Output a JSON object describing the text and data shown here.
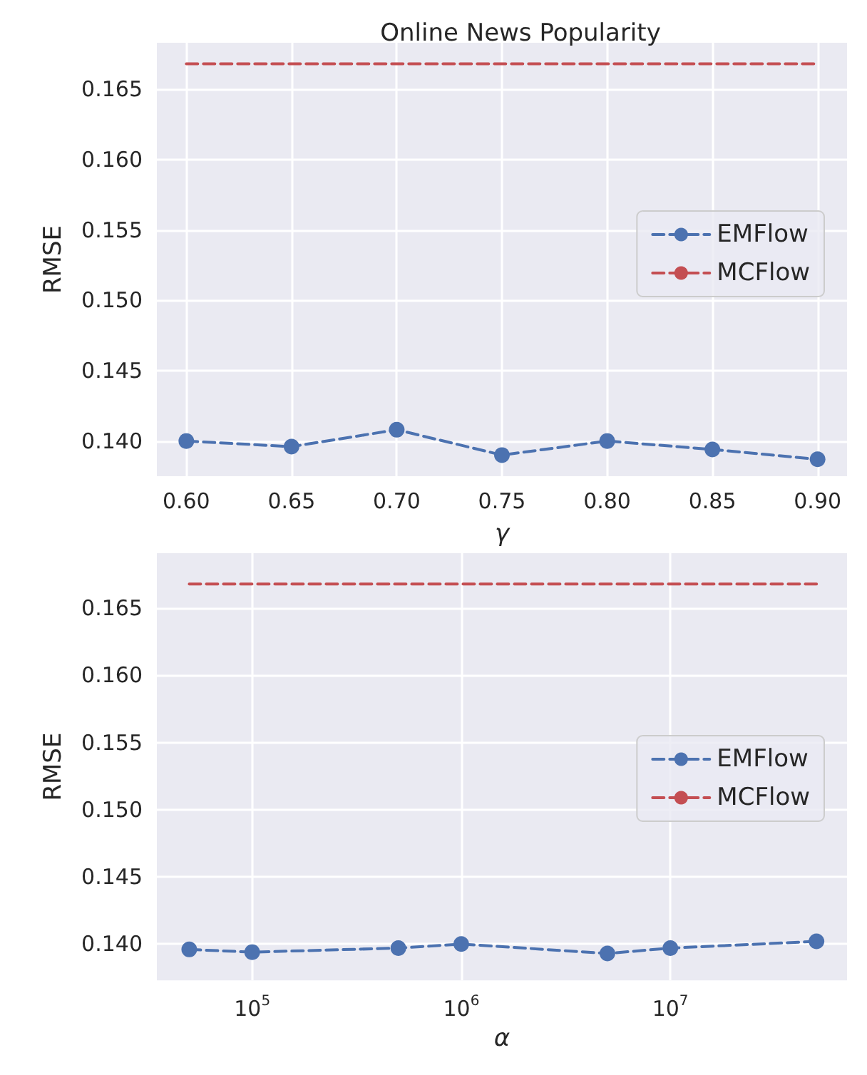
{
  "chart_data": [
    {
      "type": "line",
      "title": "Online News Popularity",
      "xlabel": "γ",
      "ylabel": "RMSE",
      "x": [
        0.6,
        0.65,
        0.7,
        0.75,
        0.8,
        0.85,
        0.9
      ],
      "series": [
        {
          "name": "EMFlow",
          "color": "#4c72b0",
          "values": [
            0.14,
            0.1396,
            0.1408,
            0.139,
            0.14,
            0.1394,
            0.1387
          ],
          "marker": "circle",
          "line_style": "dashed"
        },
        {
          "name": "MCFlow",
          "color": "#c44e52",
          "x": [
            0.6,
            0.9
          ],
          "values": [
            0.1668,
            0.1668
          ],
          "marker": "none",
          "line_style": "dashed"
        }
      ],
      "xlim": [
        0.586,
        0.914
      ],
      "xticks": [
        {
          "value": 0.6,
          "label": "0.60"
        },
        {
          "value": 0.65,
          "label": "0.65"
        },
        {
          "value": 0.7,
          "label": "0.70"
        },
        {
          "value": 0.75,
          "label": "0.75"
        },
        {
          "value": 0.8,
          "label": "0.80"
        },
        {
          "value": 0.85,
          "label": "0.85"
        },
        {
          "value": 0.9,
          "label": "0.90"
        }
      ],
      "ylim": [
        0.1375,
        0.1683
      ],
      "yticks": [
        {
          "value": 0.14,
          "label": "0.140"
        },
        0.145,
        {
          "value": 0.15,
          "label": "0.150"
        },
        0.155,
        {
          "value": 0.16,
          "label": "0.160"
        },
        0.165
      ],
      "grid": true,
      "legend": "right"
    },
    {
      "type": "line",
      "xlabel": "α",
      "ylabel": "RMSE",
      "x": [
        50000,
        100000,
        500000,
        1000000,
        5000000,
        10000000,
        50000000
      ],
      "series": [
        {
          "name": "EMFlow",
          "color": "#4c72b0",
          "values": [
            0.1396,
            0.1394,
            0.1397,
            0.14,
            0.1393,
            0.1397,
            0.1402
          ],
          "marker": "circle",
          "line_style": "dashed"
        },
        {
          "name": "MCFlow",
          "color": "#c44e52",
          "x": [
            50000,
            50000000
          ],
          "values": [
            0.1668,
            0.1668
          ],
          "marker": "none",
          "line_style": "dashed"
        }
      ],
      "log": "x",
      "xlim": [
        35000,
        70000000
      ],
      "xticks": [
        {
          "value": 100000,
          "label": "10$^{5}$"
        },
        {
          "value": 1000000,
          "label": "10$^{6}$"
        },
        {
          "value": 10000000,
          "label": "10$^{7}$"
        }
      ],
      "ylim": [
        0.1373,
        0.1691
      ],
      "yticks": [
        {
          "value": 0.14,
          "label": "0.140"
        },
        0.145,
        {
          "value": 0.15,
          "label": "0.150"
        },
        0.155,
        {
          "value": 0.16,
          "label": "0.160"
        },
        0.165
      ],
      "grid": true,
      "legend": "right"
    }
  ]
}
